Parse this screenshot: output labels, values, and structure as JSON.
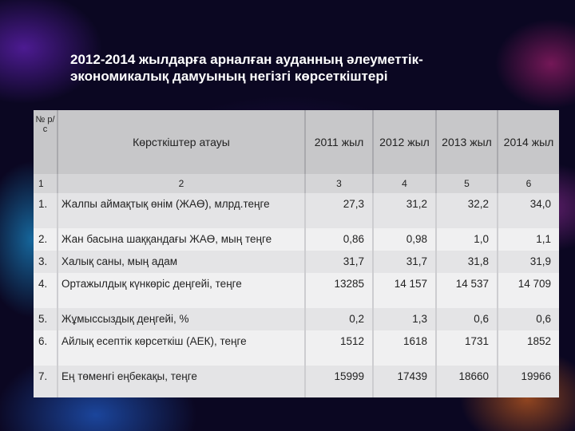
{
  "title": "2012-2014 жылдарға арналған ауданның әлеуметтік-экономикалық дамуының негізгі көрсеткіштері",
  "table": {
    "headers": [
      "№ р/с",
      "Көрсткіштер атауы",
      "2011 жыл",
      "2012 жыл",
      "2013 жыл",
      "2014 жыл"
    ],
    "column_numbers": [
      "1",
      "2",
      "3",
      "4",
      "5",
      "6"
    ],
    "rows": [
      {
        "idx": "1.",
        "name": "Жалпы аймақтық өнім (ЖАӨ), млрд.теңге",
        "values": [
          "27,3",
          "31,2",
          "32,2",
          "34,0"
        ]
      },
      {
        "idx": "2.",
        "name": "Жан басына шаққандағы ЖАӨ, мың теңге",
        "values": [
          "0,86",
          "0,98",
          "1,0",
          "1,1"
        ]
      },
      {
        "idx": "3.",
        "name": "Халық саны, мың адам",
        "values": [
          "31,7",
          "31,7",
          "31,8",
          "31,9"
        ]
      },
      {
        "idx": "4.",
        "name": "Ортажылдық күнкөріс деңгейі, теңге",
        "values": [
          "13285",
          "14 157",
          "14 537",
          "14 709"
        ]
      },
      {
        "idx": "5.",
        "name": "Жұмыссыздық деңгейі, %",
        "values": [
          "0,2",
          "1,3",
          "0,6",
          "0,6"
        ]
      },
      {
        "idx": "6.",
        "name": "Айлық есептік көрсеткіш (АЕК), теңге",
        "values": [
          "1512",
          "1618",
          "1731",
          "1852"
        ]
      },
      {
        "idx": "7.",
        "name": "Ең төменгі еңбекақы, теңге",
        "values": [
          "15999",
          "17439",
          "18660",
          "19966"
        ]
      }
    ]
  }
}
